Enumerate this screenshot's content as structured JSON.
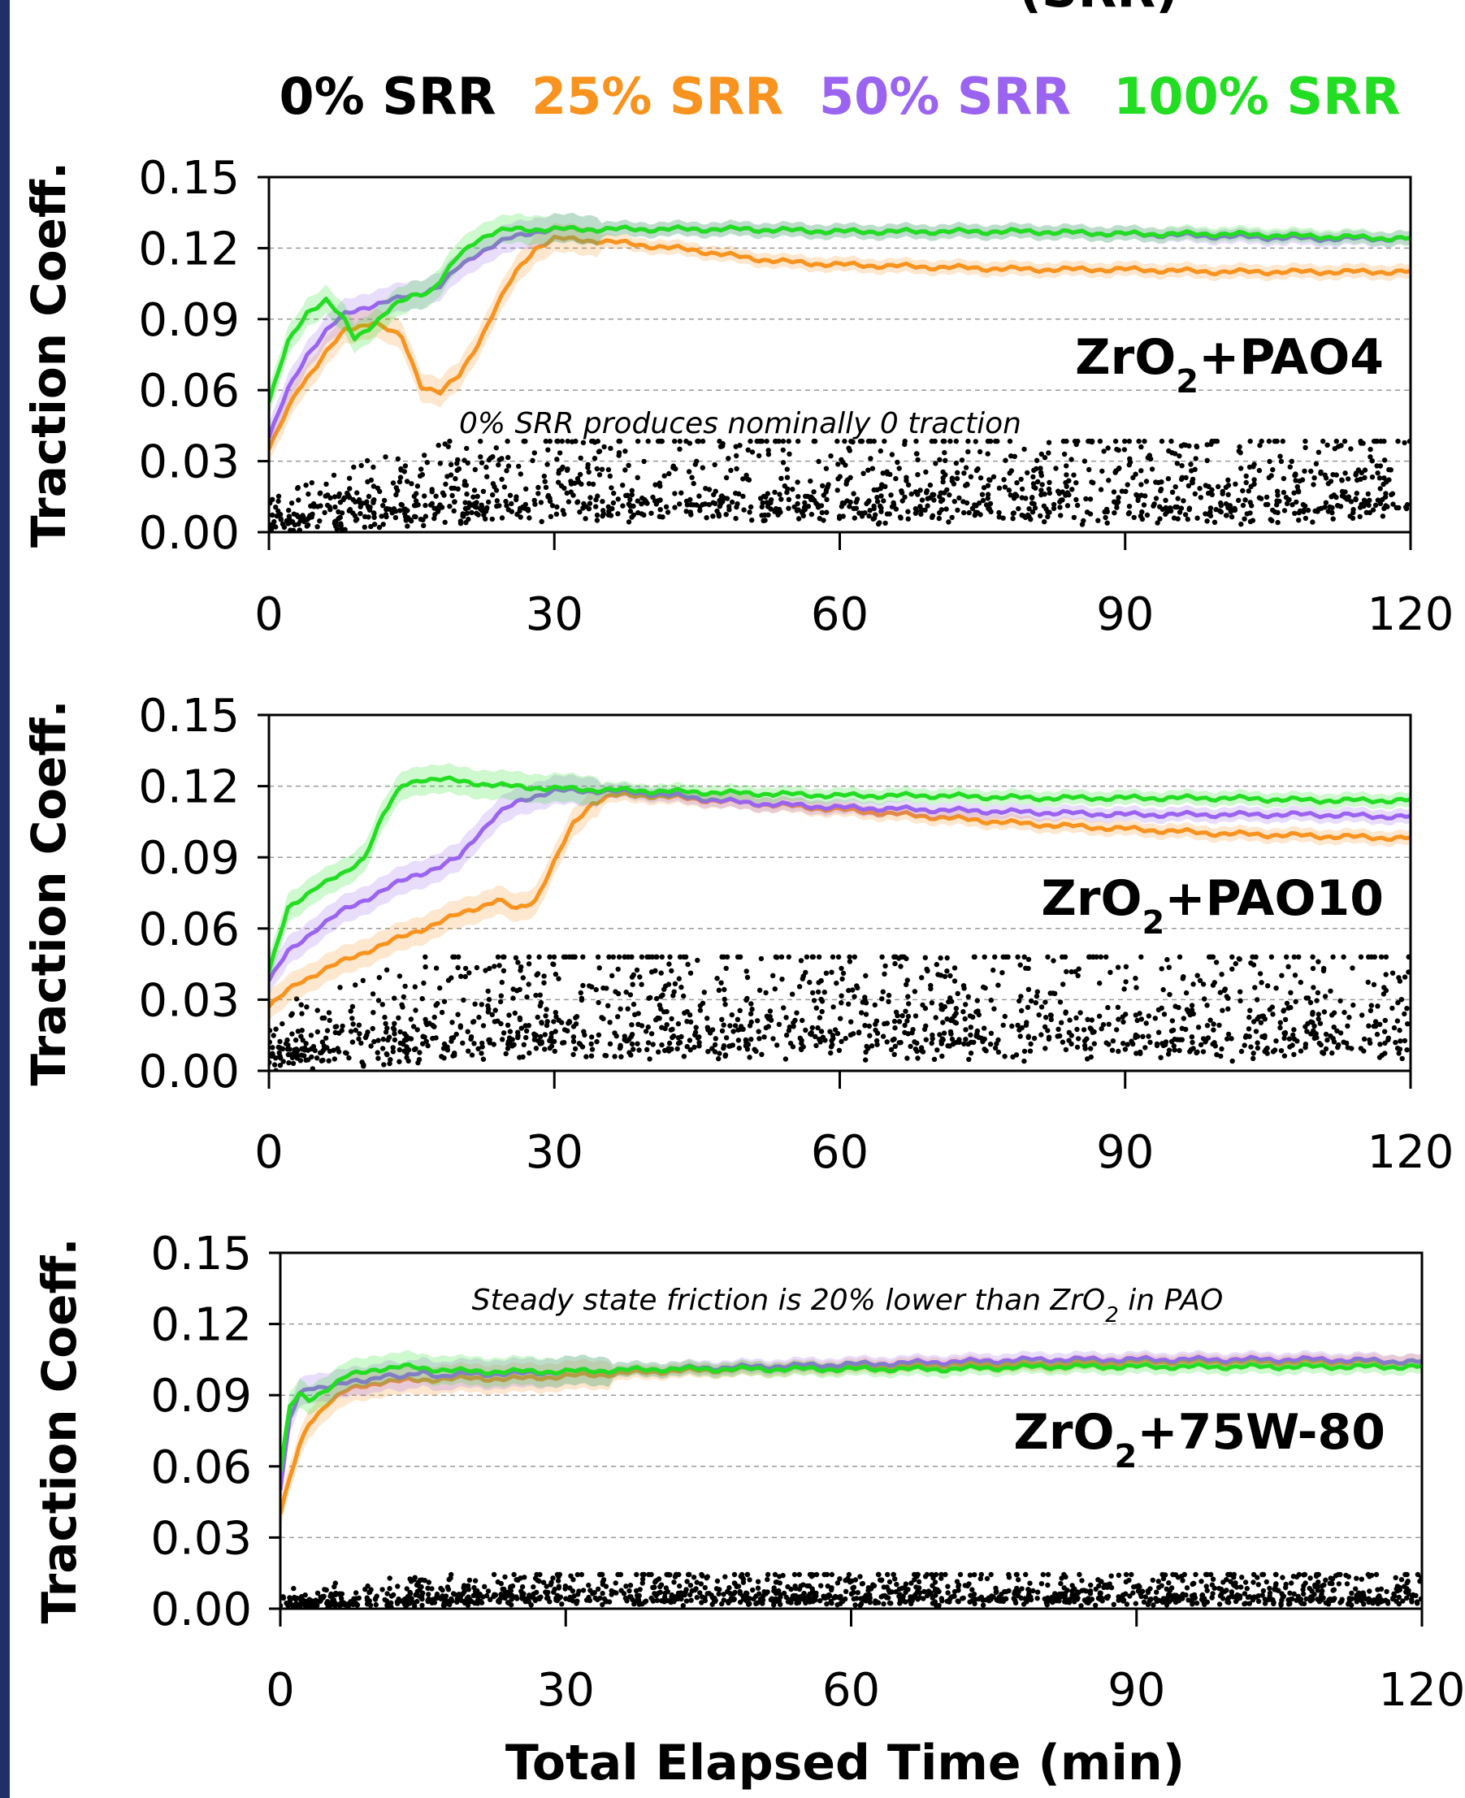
{
  "title_fragment": "(SRR)",
  "legend": [
    {
      "label": "0% SRR",
      "color": "#000000"
    },
    {
      "label": "25% SRR",
      "color": "#f7931e"
    },
    {
      "label": "50% SRR",
      "color": "#9b64f0"
    },
    {
      "label": "100% SRR",
      "color": "#22dd22"
    }
  ],
  "xlabel": "Total Elapsed Time (min)",
  "chart_data": [
    {
      "type": "line",
      "panel_label": {
        "base": "ZrO",
        "sub": "2",
        "rest": "+PAO4"
      },
      "annotation": {
        "parts": [
          {
            "t": "0% SRR produces nominally 0 traction"
          }
        ]
      },
      "ylabel": "Traction Coeff.",
      "xlim": [
        0,
        120
      ],
      "ylim": [
        0,
        0.15
      ],
      "xticks": [
        "0",
        "30",
        "60",
        "90",
        "120"
      ],
      "yticks": [
        "0.00",
        "0.03",
        "0.06",
        "0.09",
        "0.12",
        "0.15"
      ],
      "grid": "horizontal dashed",
      "series": [
        {
          "name": "0% SRR",
          "type": "scatter",
          "color": "#000000",
          "noise_band": [
            0.0,
            0.032
          ]
        },
        {
          "name": "25% SRR",
          "color": "#f7931e",
          "x": [
            0,
            3,
            6,
            8,
            11,
            14,
            16,
            18,
            20,
            22,
            24,
            26,
            28,
            30,
            35,
            40,
            45,
            50,
            55,
            60,
            70,
            80,
            90,
            100,
            110,
            120
          ],
          "y": [
            0.035,
            0.06,
            0.076,
            0.085,
            0.089,
            0.082,
            0.062,
            0.059,
            0.066,
            0.08,
            0.096,
            0.11,
            0.12,
            0.124,
            0.123,
            0.121,
            0.119,
            0.116,
            0.114,
            0.113,
            0.112,
            0.111,
            0.111,
            0.11,
            0.11,
            0.11
          ]
        },
        {
          "name": "50% SRR",
          "color": "#9b64f0",
          "x": [
            0,
            2,
            4,
            6,
            8,
            10,
            12,
            14,
            16,
            18,
            20,
            22,
            24,
            26,
            28,
            30,
            40,
            50,
            60,
            70,
            80,
            90,
            100,
            110,
            120
          ],
          "y": [
            0.04,
            0.06,
            0.075,
            0.085,
            0.092,
            0.095,
            0.097,
            0.099,
            0.101,
            0.104,
            0.112,
            0.118,
            0.122,
            0.125,
            0.127,
            0.128,
            0.128,
            0.128,
            0.127,
            0.127,
            0.127,
            0.126,
            0.125,
            0.124,
            0.124
          ]
        },
        {
          "name": "100% SRR",
          "color": "#22dd22",
          "x": [
            0,
            2,
            4,
            6,
            8,
            9,
            11,
            13,
            15,
            17,
            18,
            20,
            22,
            24,
            26,
            28,
            30,
            40,
            50,
            60,
            70,
            80,
            90,
            100,
            110,
            120
          ],
          "y": [
            0.055,
            0.08,
            0.093,
            0.098,
            0.089,
            0.082,
            0.088,
            0.095,
            0.1,
            0.102,
            0.106,
            0.117,
            0.124,
            0.127,
            0.128,
            0.128,
            0.128,
            0.128,
            0.128,
            0.127,
            0.127,
            0.127,
            0.126,
            0.126,
            0.125,
            0.124
          ]
        }
      ]
    },
    {
      "type": "line",
      "panel_label": {
        "base": "ZrO",
        "sub": "2",
        "rest": "+PAO10"
      },
      "annotation": null,
      "ylabel": "Traction Coeff.",
      "xlim": [
        0,
        120
      ],
      "ylim": [
        0,
        0.15
      ],
      "xticks": [
        "0",
        "30",
        "60",
        "90",
        "120"
      ],
      "yticks": [
        "0.00",
        "0.03",
        "0.06",
        "0.09",
        "0.12",
        "0.15"
      ],
      "grid": "horizontal dashed",
      "series": [
        {
          "name": "0% SRR",
          "type": "scatter",
          "color": "#000000",
          "noise_band": [
            0.0,
            0.04
          ]
        },
        {
          "name": "25% SRR",
          "color": "#f7931e",
          "x": [
            0,
            3,
            6,
            10,
            15,
            20,
            24,
            26,
            28,
            30,
            32,
            34,
            36,
            40,
            50,
            60,
            70,
            80,
            90,
            100,
            110,
            120
          ],
          "y": [
            0.027,
            0.037,
            0.043,
            0.05,
            0.058,
            0.066,
            0.072,
            0.068,
            0.072,
            0.088,
            0.104,
            0.113,
            0.116,
            0.116,
            0.113,
            0.11,
            0.107,
            0.104,
            0.102,
            0.1,
            0.099,
            0.098
          ]
        },
        {
          "name": "50% SRR",
          "color": "#9b64f0",
          "x": [
            0,
            2,
            5,
            8,
            12,
            15,
            18,
            20,
            22,
            24,
            26,
            28,
            30,
            35,
            40,
            50,
            60,
            70,
            80,
            90,
            100,
            110,
            120
          ],
          "y": [
            0.038,
            0.05,
            0.06,
            0.068,
            0.076,
            0.082,
            0.086,
            0.09,
            0.1,
            0.108,
            0.113,
            0.116,
            0.118,
            0.118,
            0.117,
            0.113,
            0.111,
            0.11,
            0.109,
            0.108,
            0.108,
            0.108,
            0.107
          ]
        },
        {
          "name": "100% SRR",
          "color": "#22dd22",
          "x": [
            0,
            2,
            5,
            8,
            10,
            12,
            14,
            16,
            18,
            20,
            25,
            30,
            40,
            50,
            60,
            70,
            80,
            90,
            100,
            110,
            120
          ],
          "y": [
            0.042,
            0.068,
            0.078,
            0.083,
            0.09,
            0.108,
            0.12,
            0.123,
            0.123,
            0.122,
            0.12,
            0.119,
            0.118,
            0.117,
            0.116,
            0.116,
            0.115,
            0.115,
            0.115,
            0.114,
            0.114
          ]
        }
      ]
    },
    {
      "type": "line",
      "panel_label": {
        "base": "ZrO",
        "sub": "2",
        "rest": "+75W-80"
      },
      "annotation": {
        "parts": [
          {
            "t": "Steady state friction is 20% lower than ZrO"
          },
          {
            "t": "2",
            "sub": true
          },
          {
            "t": " in PAO"
          }
        ]
      },
      "ylabel": "Traction Coeff.",
      "xlim": [
        0,
        120
      ],
      "ylim": [
        0,
        0.15
      ],
      "xticks": [
        "0",
        "30",
        "60",
        "90",
        "120"
      ],
      "yticks": [
        "0.00",
        "0.03",
        "0.06",
        "0.09",
        "0.12",
        "0.15"
      ],
      "grid": "horizontal dashed",
      "series": [
        {
          "name": "0% SRR",
          "type": "scatter",
          "color": "#000000",
          "noise_band": [
            0.0,
            0.012
          ]
        },
        {
          "name": "25% SRR",
          "color": "#f7931e",
          "x": [
            0,
            1,
            2,
            3,
            5,
            7,
            9,
            11,
            14,
            17,
            20,
            25,
            30,
            40,
            50,
            60,
            70,
            80,
            90,
            100,
            110,
            120
          ],
          "y": [
            0.04,
            0.055,
            0.068,
            0.078,
            0.087,
            0.092,
            0.094,
            0.096,
            0.096,
            0.097,
            0.097,
            0.097,
            0.098,
            0.1,
            0.101,
            0.102,
            0.103,
            0.103,
            0.104,
            0.104,
            0.104,
            0.104
          ]
        },
        {
          "name": "50% SRR",
          "color": "#9b64f0",
          "x": [
            0,
            1,
            2,
            3,
            5,
            7,
            9,
            11,
            13,
            15,
            17,
            20,
            25,
            30,
            40,
            50,
            60,
            70,
            80,
            90,
            100,
            110,
            120
          ],
          "y": [
            0.05,
            0.08,
            0.09,
            0.093,
            0.094,
            0.095,
            0.096,
            0.099,
            0.097,
            0.1,
            0.098,
            0.099,
            0.099,
            0.1,
            0.101,
            0.102,
            0.103,
            0.104,
            0.105,
            0.105,
            0.105,
            0.105,
            0.104
          ]
        },
        {
          "name": "100% SRR",
          "color": "#22dd22",
          "x": [
            0,
            1,
            2,
            3,
            5,
            7,
            10,
            13,
            16,
            20,
            25,
            30,
            40,
            50,
            60,
            70,
            80,
            90,
            100,
            110,
            120
          ],
          "y": [
            0.058,
            0.085,
            0.09,
            0.088,
            0.093,
            0.098,
            0.101,
            0.102,
            0.101,
            0.1,
            0.1,
            0.1,
            0.101,
            0.101,
            0.101,
            0.101,
            0.102,
            0.102,
            0.102,
            0.102,
            0.102
          ]
        }
      ]
    }
  ]
}
